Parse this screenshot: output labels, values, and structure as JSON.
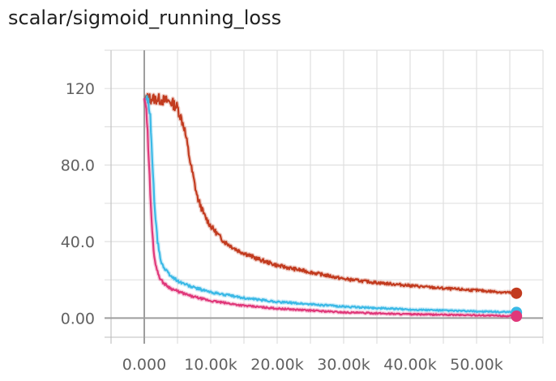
{
  "chart_data": {
    "type": "line",
    "title": "scalar/sigmoid_running_loss",
    "xlabel": "",
    "ylabel": "",
    "xlim": [
      -5000,
      60000
    ],
    "ylim": [
      -10,
      140
    ],
    "x_ticks": [
      0,
      10000,
      20000,
      30000,
      40000,
      50000
    ],
    "x_tick_labels": [
      "0.000",
      "10.00k",
      "20.00k",
      "30.00k",
      "40.00k",
      "50.00k"
    ],
    "y_ticks": [
      0,
      40,
      80,
      120
    ],
    "y_tick_labels": [
      "0.00",
      "40.0",
      "80.0",
      "120"
    ],
    "grid": true,
    "legend": "none",
    "series": [
      {
        "color": "#c23b1f",
        "x": [
          0,
          2000,
          4000,
          5000,
          6000,
          7000,
          8000,
          9000,
          10000,
          12000,
          14000,
          17000,
          20000,
          25000,
          30000,
          35000,
          40000,
          45000,
          50000,
          56000
        ],
        "y": [
          115,
          114.5,
          113,
          110,
          100,
          80,
          63,
          54,
          48,
          40,
          35.5,
          31,
          27.5,
          24,
          20.5,
          18.5,
          17,
          15.5,
          14.5,
          13
        ]
      },
      {
        "color": "#3bb9e6",
        "x": [
          0,
          600,
          900,
          1200,
          1500,
          2000,
          2500,
          3000,
          4000,
          5000,
          7000,
          10000,
          15000,
          20000,
          30000,
          40000,
          50000,
          56000
        ],
        "y": [
          115,
          113,
          105,
          85,
          60,
          40,
          30,
          26,
          22,
          19.5,
          16.5,
          13.5,
          10.5,
          8.5,
          6,
          4.5,
          3.5,
          3
        ]
      },
      {
        "color": "#e0387a",
        "x": [
          0,
          300,
          600,
          900,
          1200,
          1500,
          2000,
          2500,
          3000,
          4000,
          5000,
          7000,
          10000,
          15000,
          20000,
          30000,
          40000,
          50000,
          56000
        ],
        "y": [
          115,
          110,
          90,
          65,
          45,
          32,
          24,
          20,
          18,
          15.5,
          14,
          11.5,
          9,
          6.5,
          5,
          3,
          2,
          1.5,
          1
        ]
      }
    ]
  }
}
